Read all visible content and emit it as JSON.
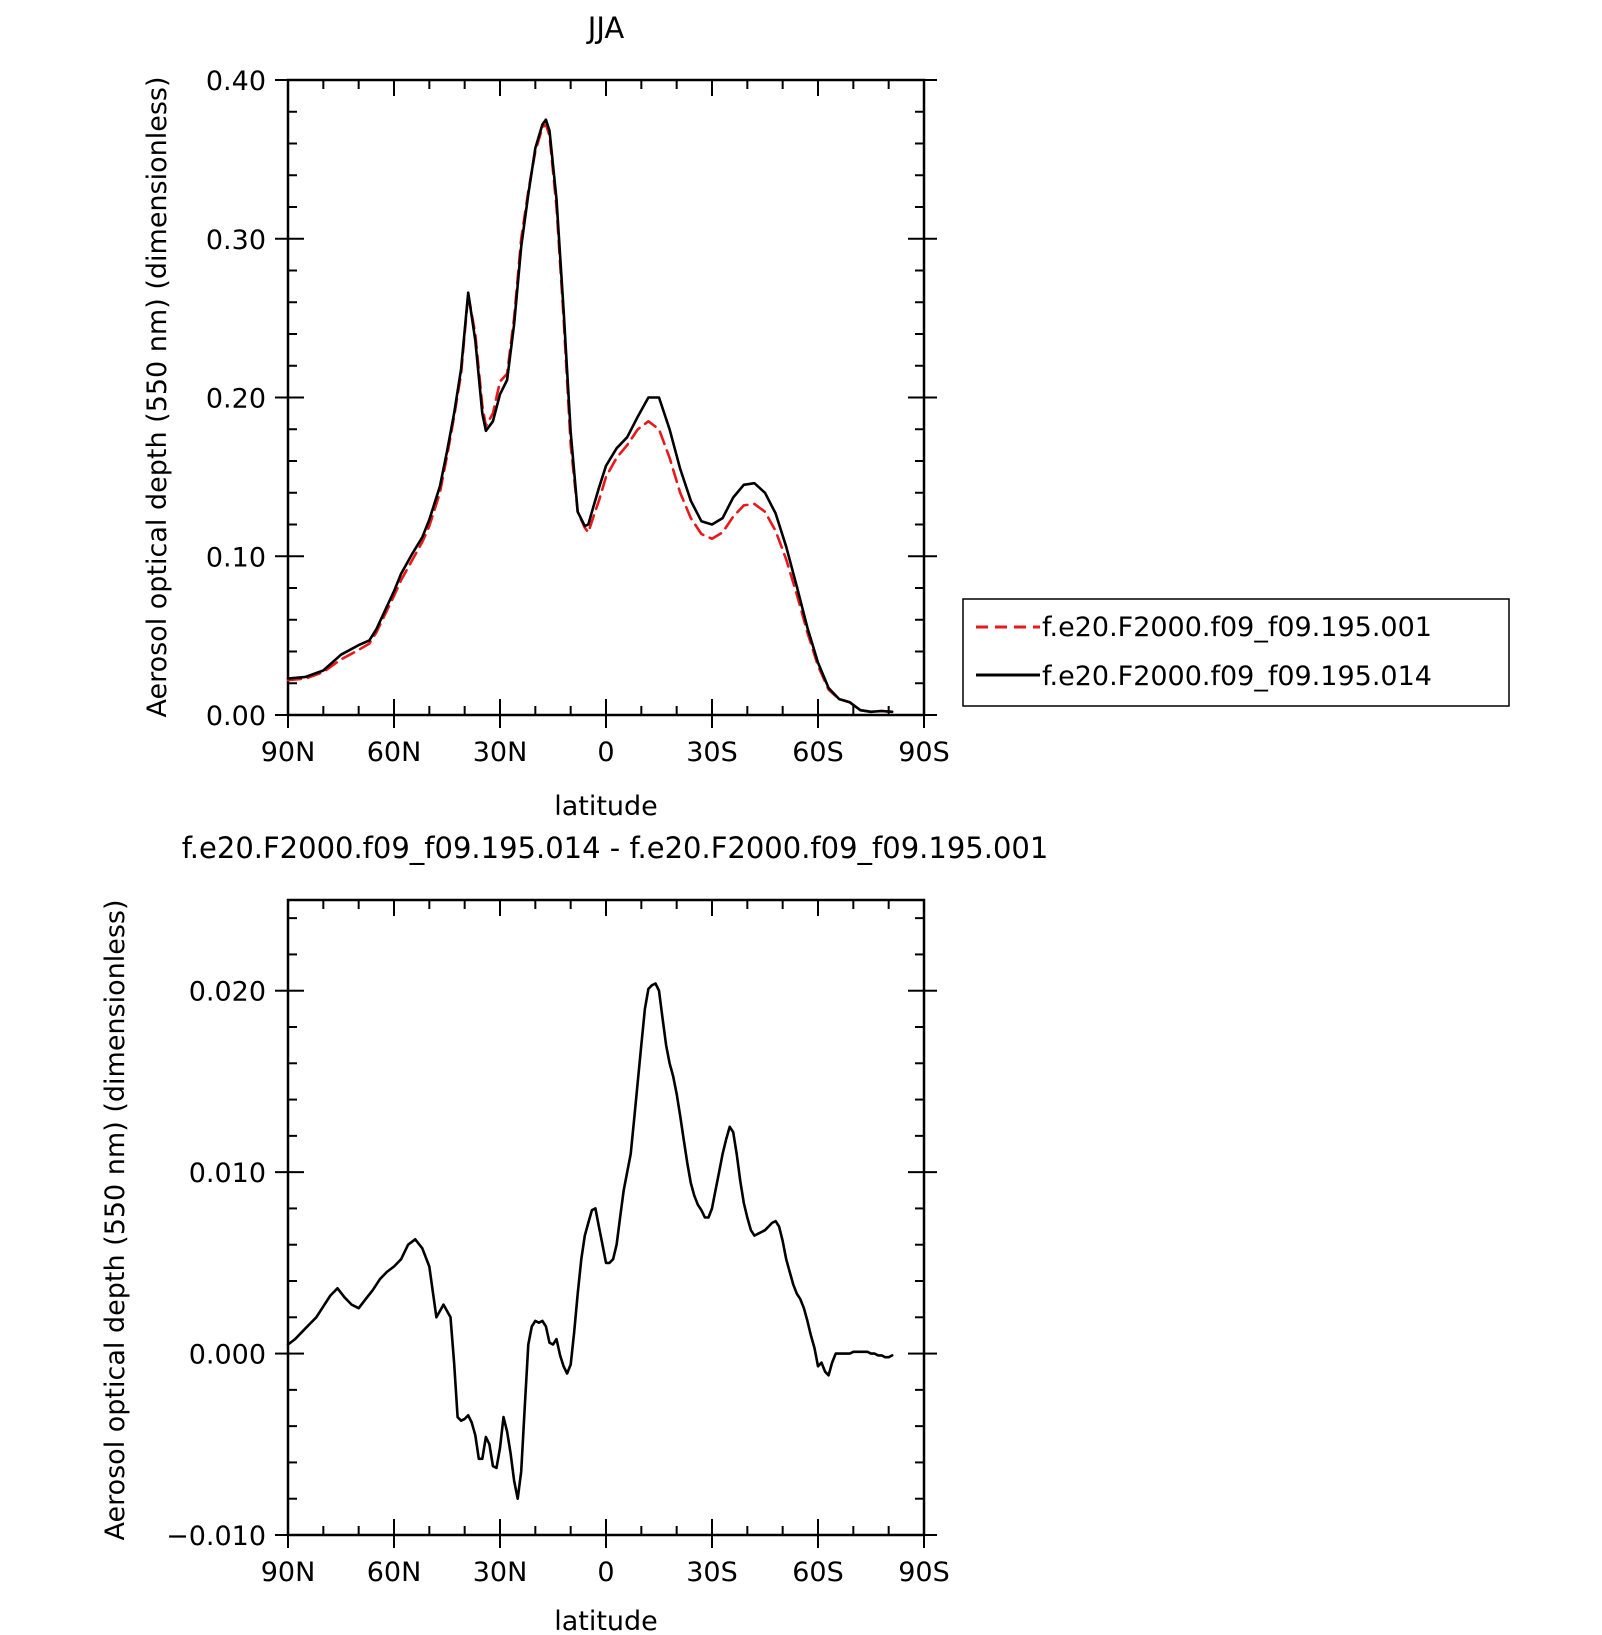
{
  "colors": {
    "series_red": "#e8191b",
    "series_black": "#000000",
    "frame": "#000000"
  },
  "chart_data": [
    {
      "type": "line",
      "title": "JJA",
      "xlabel": "latitude",
      "ylabel": "Aerosol optical depth (550 nm) (dimensionless)",
      "xlim": [
        90,
        -90
      ],
      "ylim": [
        0,
        0.4
      ],
      "xticks": [
        {
          "value": 90,
          "label": "90N"
        },
        {
          "value": 60,
          "label": "60N"
        },
        {
          "value": 30,
          "label": "30N"
        },
        {
          "value": 0,
          "label": "0"
        },
        {
          "value": -30,
          "label": "30S"
        },
        {
          "value": -60,
          "label": "60S"
        },
        {
          "value": -90,
          "label": "90S"
        }
      ],
      "yticks": [
        {
          "value": 0.0,
          "label": "0.00"
        },
        {
          "value": 0.1,
          "label": "0.10"
        },
        {
          "value": 0.2,
          "label": "0.20"
        },
        {
          "value": 0.3,
          "label": "0.30"
        },
        {
          "value": 0.4,
          "label": "0.40"
        }
      ],
      "grid": false,
      "legend_position": "right",
      "series": [
        {
          "name": "f.e20.F2000.f09_f09.195.001",
          "style": "dashed",
          "color": "#e8191b",
          "x": [
            90,
            85,
            80,
            75,
            70,
            67,
            65,
            60,
            58,
            55,
            52,
            50,
            47,
            45,
            43,
            41,
            39,
            37,
            35,
            34,
            32,
            30,
            28,
            26,
            24,
            22,
            20,
            18,
            17,
            16,
            14,
            12,
            10,
            8,
            6,
            5,
            4,
            2,
            0,
            -3,
            -6,
            -9,
            -12,
            -15,
            -18,
            -21,
            -24,
            -27,
            -30,
            -33,
            -36,
            -39,
            -42,
            -45,
            -48,
            -51,
            -54,
            -57,
            -60,
            -63,
            -66,
            -69,
            -72,
            -75,
            -78,
            -81
          ],
          "y": [
            0.022,
            0.023,
            0.027,
            0.035,
            0.041,
            0.045,
            0.052,
            0.075,
            0.085,
            0.097,
            0.109,
            0.119,
            0.14,
            0.163,
            0.188,
            0.215,
            0.265,
            0.24,
            0.195,
            0.182,
            0.19,
            0.21,
            0.215,
            0.25,
            0.3,
            0.33,
            0.355,
            0.37,
            0.372,
            0.365,
            0.32,
            0.25,
            0.17,
            0.128,
            0.118,
            0.115,
            0.122,
            0.135,
            0.15,
            0.162,
            0.17,
            0.18,
            0.185,
            0.18,
            0.162,
            0.14,
            0.124,
            0.114,
            0.111,
            0.115,
            0.125,
            0.132,
            0.133,
            0.128,
            0.116,
            0.098,
            0.076,
            0.052,
            0.031,
            0.016,
            0.01,
            0.008,
            0.003,
            0.002,
            0.0025,
            0.002
          ]
        },
        {
          "name": "f.e20.F2000.f09_f09.195.014",
          "style": "solid",
          "color": "#000000",
          "x": [
            90,
            85,
            80,
            75,
            70,
            67,
            65,
            60,
            58,
            55,
            52,
            50,
            47,
            45,
            43,
            41,
            39,
            37,
            35,
            34,
            32,
            30,
            28,
            26,
            24,
            22,
            20,
            18,
            17,
            16,
            14,
            12,
            10,
            8,
            6,
            5,
            4,
            2,
            0,
            -3,
            -6,
            -9,
            -12,
            -15,
            -18,
            -21,
            -24,
            -27,
            -30,
            -33,
            -36,
            -39,
            -42,
            -45,
            -48,
            -51,
            -54,
            -57,
            -60,
            -63,
            -66,
            -69,
            -72,
            -75,
            -78,
            -81
          ],
          "y": [
            0.023,
            0.024,
            0.028,
            0.038,
            0.044,
            0.047,
            0.054,
            0.078,
            0.089,
            0.101,
            0.112,
            0.123,
            0.144,
            0.166,
            0.19,
            0.218,
            0.266,
            0.236,
            0.19,
            0.179,
            0.185,
            0.202,
            0.211,
            0.246,
            0.295,
            0.328,
            0.357,
            0.372,
            0.375,
            0.368,
            0.325,
            0.255,
            0.178,
            0.128,
            0.119,
            0.12,
            0.128,
            0.143,
            0.157,
            0.168,
            0.175,
            0.188,
            0.2,
            0.2,
            0.18,
            0.155,
            0.135,
            0.122,
            0.12,
            0.124,
            0.137,
            0.145,
            0.146,
            0.14,
            0.127,
            0.106,
            0.081,
            0.055,
            0.033,
            0.017,
            0.01,
            0.008,
            0.003,
            0.002,
            0.0025,
            0.002
          ]
        }
      ]
    },
    {
      "type": "line",
      "title": "f.e20.F2000.f09_f09.195.014 - f.e20.F2000.f09_f09.195.001",
      "xlabel": "latitude",
      "ylabel": "Aerosol optical depth (550 nm) (dimensionless)",
      "xlim": [
        90,
        -90
      ],
      "ylim": [
        -0.01,
        0.025
      ],
      "xticks": [
        {
          "value": 90,
          "label": "90N"
        },
        {
          "value": 60,
          "label": "60N"
        },
        {
          "value": 30,
          "label": "30N"
        },
        {
          "value": 0,
          "label": "0"
        },
        {
          "value": -30,
          "label": "30S"
        },
        {
          "value": -60,
          "label": "60S"
        },
        {
          "value": -90,
          "label": "90S"
        }
      ],
      "yticks": [
        {
          "value": -0.01,
          "label": "−0.010"
        },
        {
          "value": 0.0,
          "label": "0.000"
        },
        {
          "value": 0.01,
          "label": "0.010"
        },
        {
          "value": 0.02,
          "label": "0.020"
        }
      ],
      "grid": false,
      "series": [
        {
          "style": "solid",
          "color": "#000000",
          "x": [
            90,
            88,
            86,
            84,
            82,
            80,
            78,
            76,
            74,
            72,
            70,
            68,
            66,
            64,
            62,
            60,
            58,
            56,
            54,
            52,
            50,
            48,
            46,
            44,
            43,
            42,
            41,
            40,
            39,
            38,
            37,
            36,
            35,
            34,
            33,
            32,
            31,
            30,
            29,
            28,
            27,
            26,
            25,
            24,
            23,
            22,
            21,
            20,
            19,
            18,
            17,
            16,
            15,
            14,
            13,
            12,
            11,
            10,
            9,
            8,
            7,
            6,
            5,
            4,
            3,
            2,
            1,
            0,
            -1,
            -2,
            -3,
            -4,
            -5,
            -6,
            -7,
            -8,
            -9,
            -10,
            -11,
            -12,
            -13,
            -14,
            -15,
            -16,
            -17,
            -18,
            -19,
            -20,
            -21,
            -22,
            -23,
            -24,
            -25,
            -26,
            -27,
            -28,
            -29,
            -30,
            -31,
            -32,
            -33,
            -34,
            -35,
            -36,
            -37,
            -38,
            -39,
            -40,
            -41,
            -42,
            -43,
            -44,
            -45,
            -46,
            -47,
            -48,
            -49,
            -50,
            -51,
            -52,
            -53,
            -54,
            -55,
            -56,
            -57,
            -58,
            -59,
            -60,
            -61,
            -62,
            -63,
            -64,
            -65,
            -66,
            -67,
            -68,
            -69,
            -70,
            -71,
            -72,
            -73,
            -74,
            -75,
            -76,
            -77,
            -78,
            -79,
            -80,
            -81
          ],
          "y": [
            0.0005,
            0.0008,
            0.0012,
            0.0016,
            0.002,
            0.0026,
            0.0032,
            0.0036,
            0.0031,
            0.0027,
            0.0025,
            0.003,
            0.0035,
            0.0041,
            0.0045,
            0.0048,
            0.0052,
            0.006,
            0.0063,
            0.0058,
            0.0048,
            0.002,
            0.0027,
            0.002,
            -0.0005,
            -0.0035,
            -0.0037,
            -0.0036,
            -0.0034,
            -0.0038,
            -0.0045,
            -0.0058,
            -0.0058,
            -0.0046,
            -0.005,
            -0.0062,
            -0.0063,
            -0.0052,
            -0.0035,
            -0.0043,
            -0.0055,
            -0.007,
            -0.008,
            -0.0065,
            -0.003,
            0.0005,
            0.0015,
            0.0018,
            0.0017,
            0.0018,
            0.0015,
            0.0006,
            0.0005,
            0.0008,
            -0.0001,
            -0.0007,
            -0.0011,
            -0.0006,
            0.0012,
            0.0033,
            0.0052,
            0.0065,
            0.0072,
            0.0079,
            0.008,
            0.007,
            0.006,
            0.005,
            0.005,
            0.0052,
            0.006,
            0.0075,
            0.009,
            0.01,
            0.011,
            0.013,
            0.015,
            0.017,
            0.019,
            0.0201,
            0.0203,
            0.0204,
            0.02,
            0.0185,
            0.017,
            0.016,
            0.0153,
            0.0143,
            0.0131,
            0.0118,
            0.0105,
            0.0094,
            0.0087,
            0.0082,
            0.0079,
            0.0075,
            0.0075,
            0.008,
            0.009,
            0.01,
            0.011,
            0.0118,
            0.0125,
            0.0122,
            0.011,
            0.0095,
            0.0083,
            0.0075,
            0.0068,
            0.0065,
            0.0066,
            0.0067,
            0.0068,
            0.007,
            0.0072,
            0.0073,
            0.007,
            0.0062,
            0.0052,
            0.0045,
            0.0038,
            0.0033,
            0.003,
            0.0025,
            0.0018,
            0.001,
            0.0003,
            -0.0007,
            -0.0005,
            -0.001,
            -0.0012,
            -0.0005,
            0.0,
            0.0,
            0.0,
            0.0,
            0.0,
            0.0001,
            0.0001,
            0.0001,
            0.0001,
            0.0001,
            0.0,
            0.0,
            -0.0001,
            -0.0001,
            -0.0002,
            -0.0002,
            -0.0001
          ]
        }
      ]
    }
  ]
}
